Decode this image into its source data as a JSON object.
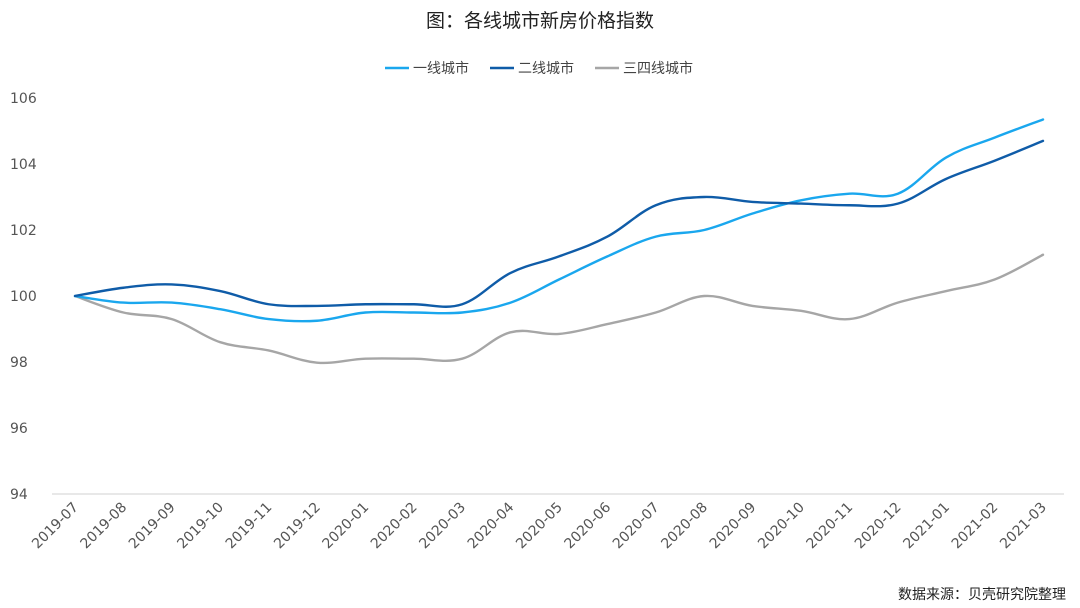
{
  "title": "图：各线城市新房价格指数",
  "source": "数据来源：贝壳研究院整理",
  "chart_data": {
    "type": "line",
    "title": "图：各线城市新房价格指数",
    "xlabel": "",
    "ylabel": "",
    "categories": [
      "2019-07",
      "2019-08",
      "2019-09",
      "2019-10",
      "2019-11",
      "2019-12",
      "2020-01",
      "2020-02",
      "2020-03",
      "2020-04",
      "2020-05",
      "2020-06",
      "2020-07",
      "2020-08",
      "2020-09",
      "2020-10",
      "2020-11",
      "2020-12",
      "2021-01",
      "2021-02",
      "2021-03"
    ],
    "ylim": [
      94,
      106
    ],
    "yticks": [
      94,
      96,
      98,
      100,
      102,
      104,
      106
    ],
    "grid": false,
    "legend": "top-center",
    "series": [
      {
        "name": "一线城市",
        "color": "#1aa7ee",
        "values": [
          100.0,
          99.8,
          99.8,
          99.6,
          99.3,
          99.25,
          99.5,
          99.5,
          99.5,
          99.8,
          100.5,
          101.2,
          101.8,
          102.0,
          102.5,
          102.9,
          103.1,
          103.1,
          104.2,
          104.8,
          105.35
        ]
      },
      {
        "name": "二线城市",
        "color": "#0f5ca8",
        "values": [
          100.0,
          100.25,
          100.35,
          100.15,
          99.75,
          99.7,
          99.75,
          99.75,
          99.75,
          100.7,
          101.2,
          101.8,
          102.75,
          103.0,
          102.85,
          102.8,
          102.75,
          102.8,
          103.55,
          104.1,
          104.7
        ]
      },
      {
        "name": "三四线城市",
        "color": "#a6a6a6",
        "values": [
          100.0,
          99.5,
          99.3,
          98.6,
          98.35,
          97.98,
          98.1,
          98.1,
          98.1,
          98.9,
          98.85,
          99.15,
          99.5,
          100.0,
          99.7,
          99.55,
          99.3,
          99.8,
          100.15,
          100.5,
          101.25
        ]
      }
    ]
  }
}
